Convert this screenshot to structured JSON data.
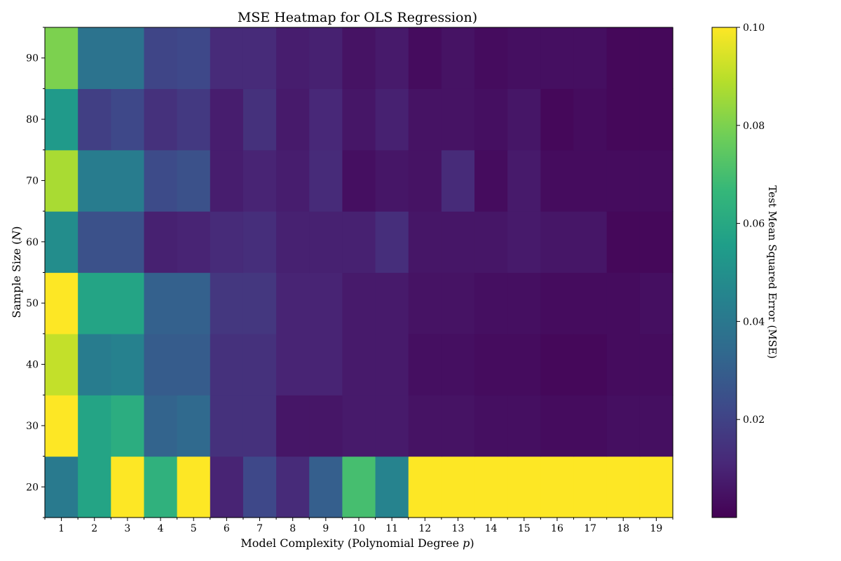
{
  "colors": {
    "viridis": [
      "#440154",
      "#482878",
      "#3e4989",
      "#31688e",
      "#26828e",
      "#1f9e89",
      "#35b779",
      "#6ece58",
      "#b5de2b",
      "#fde725"
    ],
    "frame": "#000000",
    "background": "#ffffff"
  },
  "chart_data": {
    "type": "heatmap",
    "title": "MSE Heatmap for OLS Regression)",
    "xlabel": {
      "text": "Model Complexity (Polynomial Degree ",
      "math": "p",
      "suffix": ")"
    },
    "ylabel": {
      "text": "Sample Size (",
      "math": "N",
      "suffix": ")"
    },
    "colorbar_label": "Test Mean Squared Error (MSE)",
    "x": [
      "1",
      "2",
      "3",
      "4",
      "5",
      "6",
      "7",
      "8",
      "9",
      "10",
      "11",
      "12",
      "13",
      "14",
      "15",
      "16",
      "17",
      "18",
      "19"
    ],
    "y": [
      "20",
      "30",
      "40",
      "50",
      "60",
      "70",
      "80",
      "90"
    ],
    "vmin": 0.0,
    "vmax": 0.1,
    "colorbar_ticks": [
      {
        "value": 0.02,
        "label": "0.02"
      },
      {
        "value": 0.04,
        "label": "0.04"
      },
      {
        "value": 0.06,
        "label": "0.06"
      },
      {
        "value": 0.08,
        "label": "0.08"
      },
      {
        "value": 0.1,
        "label": "0.10"
      }
    ],
    "values": [
      [
        0.041,
        0.058,
        0.1,
        0.064,
        0.1,
        0.01,
        0.022,
        0.012,
        0.03,
        0.07,
        0.045,
        0.1,
        0.1,
        0.1,
        0.1,
        0.1,
        0.1,
        0.1,
        0.1
      ],
      [
        0.1,
        0.058,
        0.062,
        0.032,
        0.034,
        0.014,
        0.014,
        0.006,
        0.006,
        0.007,
        0.007,
        0.005,
        0.005,
        0.004,
        0.004,
        0.003,
        0.003,
        0.004,
        0.004
      ],
      [
        0.091,
        0.042,
        0.044,
        0.029,
        0.029,
        0.014,
        0.014,
        0.01,
        0.01,
        0.007,
        0.007,
        0.004,
        0.004,
        0.003,
        0.003,
        0.002,
        0.002,
        0.003,
        0.003
      ],
      [
        0.1,
        0.058,
        0.058,
        0.031,
        0.031,
        0.016,
        0.016,
        0.01,
        0.01,
        0.007,
        0.007,
        0.005,
        0.005,
        0.004,
        0.004,
        0.003,
        0.003,
        0.003,
        0.004
      ],
      [
        0.049,
        0.025,
        0.025,
        0.009,
        0.01,
        0.012,
        0.013,
        0.009,
        0.009,
        0.009,
        0.013,
        0.006,
        0.006,
        0.006,
        0.007,
        0.006,
        0.006,
        0.002,
        0.002
      ],
      [
        0.087,
        0.042,
        0.042,
        0.023,
        0.025,
        0.008,
        0.01,
        0.008,
        0.012,
        0.004,
        0.006,
        0.005,
        0.012,
        0.003,
        0.007,
        0.003,
        0.003,
        0.003,
        0.003
      ],
      [
        0.054,
        0.019,
        0.022,
        0.014,
        0.017,
        0.008,
        0.014,
        0.007,
        0.011,
        0.006,
        0.009,
        0.005,
        0.005,
        0.004,
        0.006,
        0.002,
        0.003,
        0.002,
        0.002
      ],
      [
        0.08,
        0.038,
        0.038,
        0.021,
        0.022,
        0.012,
        0.012,
        0.008,
        0.009,
        0.005,
        0.007,
        0.003,
        0.005,
        0.003,
        0.004,
        0.004,
        0.004,
        0.002,
        0.002
      ]
    ]
  }
}
